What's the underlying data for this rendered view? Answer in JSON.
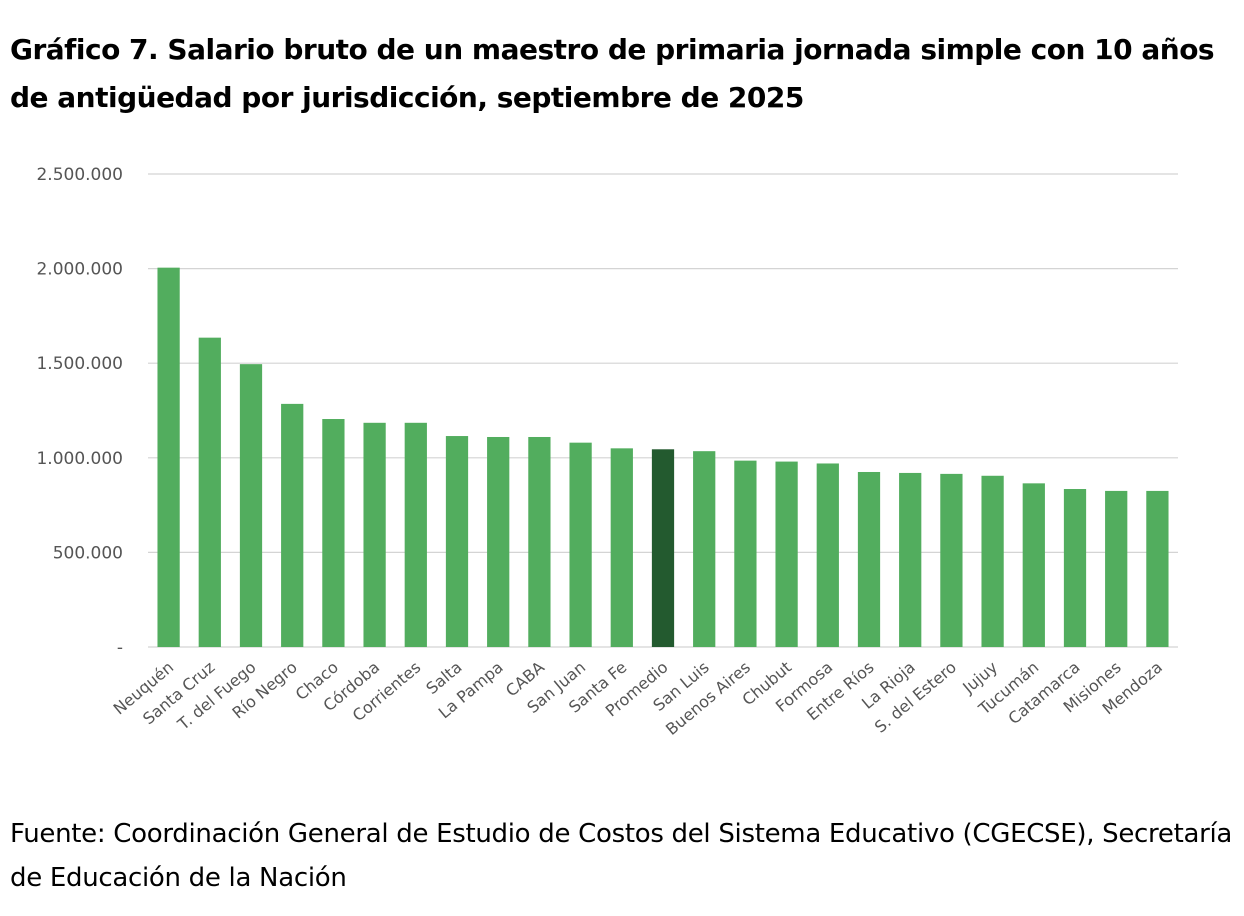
{
  "chart_data": {
    "type": "bar",
    "title": "Gráfico 7. Salario bruto de un maestro de primaria jornada simple con 10 años de antigüedad por jurisdicción, septiembre de 2025",
    "source": "Fuente: Coordinación General de Estudio de Costos del Sistema Educativo (CGECSE), Secretaría de Educación de la Nación",
    "xlabel": "",
    "ylabel": "",
    "ylim": [
      0,
      2500000
    ],
    "yticks": [
      0,
      500000,
      1000000,
      1500000,
      2000000,
      2500000
    ],
    "ytick_labels": [
      "-",
      "500.000",
      "1.000.000",
      "1.500.000",
      "2.000.000",
      "2.500.000"
    ],
    "grid": true,
    "legend": "none",
    "bar_color": "#52ad5e",
    "highlight_color": "#235a2f",
    "highlight_category": "Promedio",
    "categories": [
      "Neuquén",
      "Santa Cruz",
      "T. del Fuego",
      "Río Negro",
      "Chaco",
      "Córdoba",
      "Corrientes",
      "Salta",
      "La Pampa",
      "CABA",
      "San Juan",
      "Santa Fe",
      "Promedio",
      "San Luis",
      "Buenos Aires",
      "Chubut",
      "Formosa",
      "Entre Ríos",
      "La Rioja",
      "S. del Estero",
      "Jujuy",
      "Tucumán",
      "Catamarca",
      "Misiones",
      "Mendoza"
    ],
    "values": [
      2005000,
      1635000,
      1495000,
      1285000,
      1205000,
      1185000,
      1185000,
      1115000,
      1110000,
      1110000,
      1080000,
      1050000,
      1045000,
      1035000,
      985000,
      980000,
      970000,
      925000,
      920000,
      915000,
      905000,
      865000,
      835000,
      825000,
      825000
    ]
  }
}
